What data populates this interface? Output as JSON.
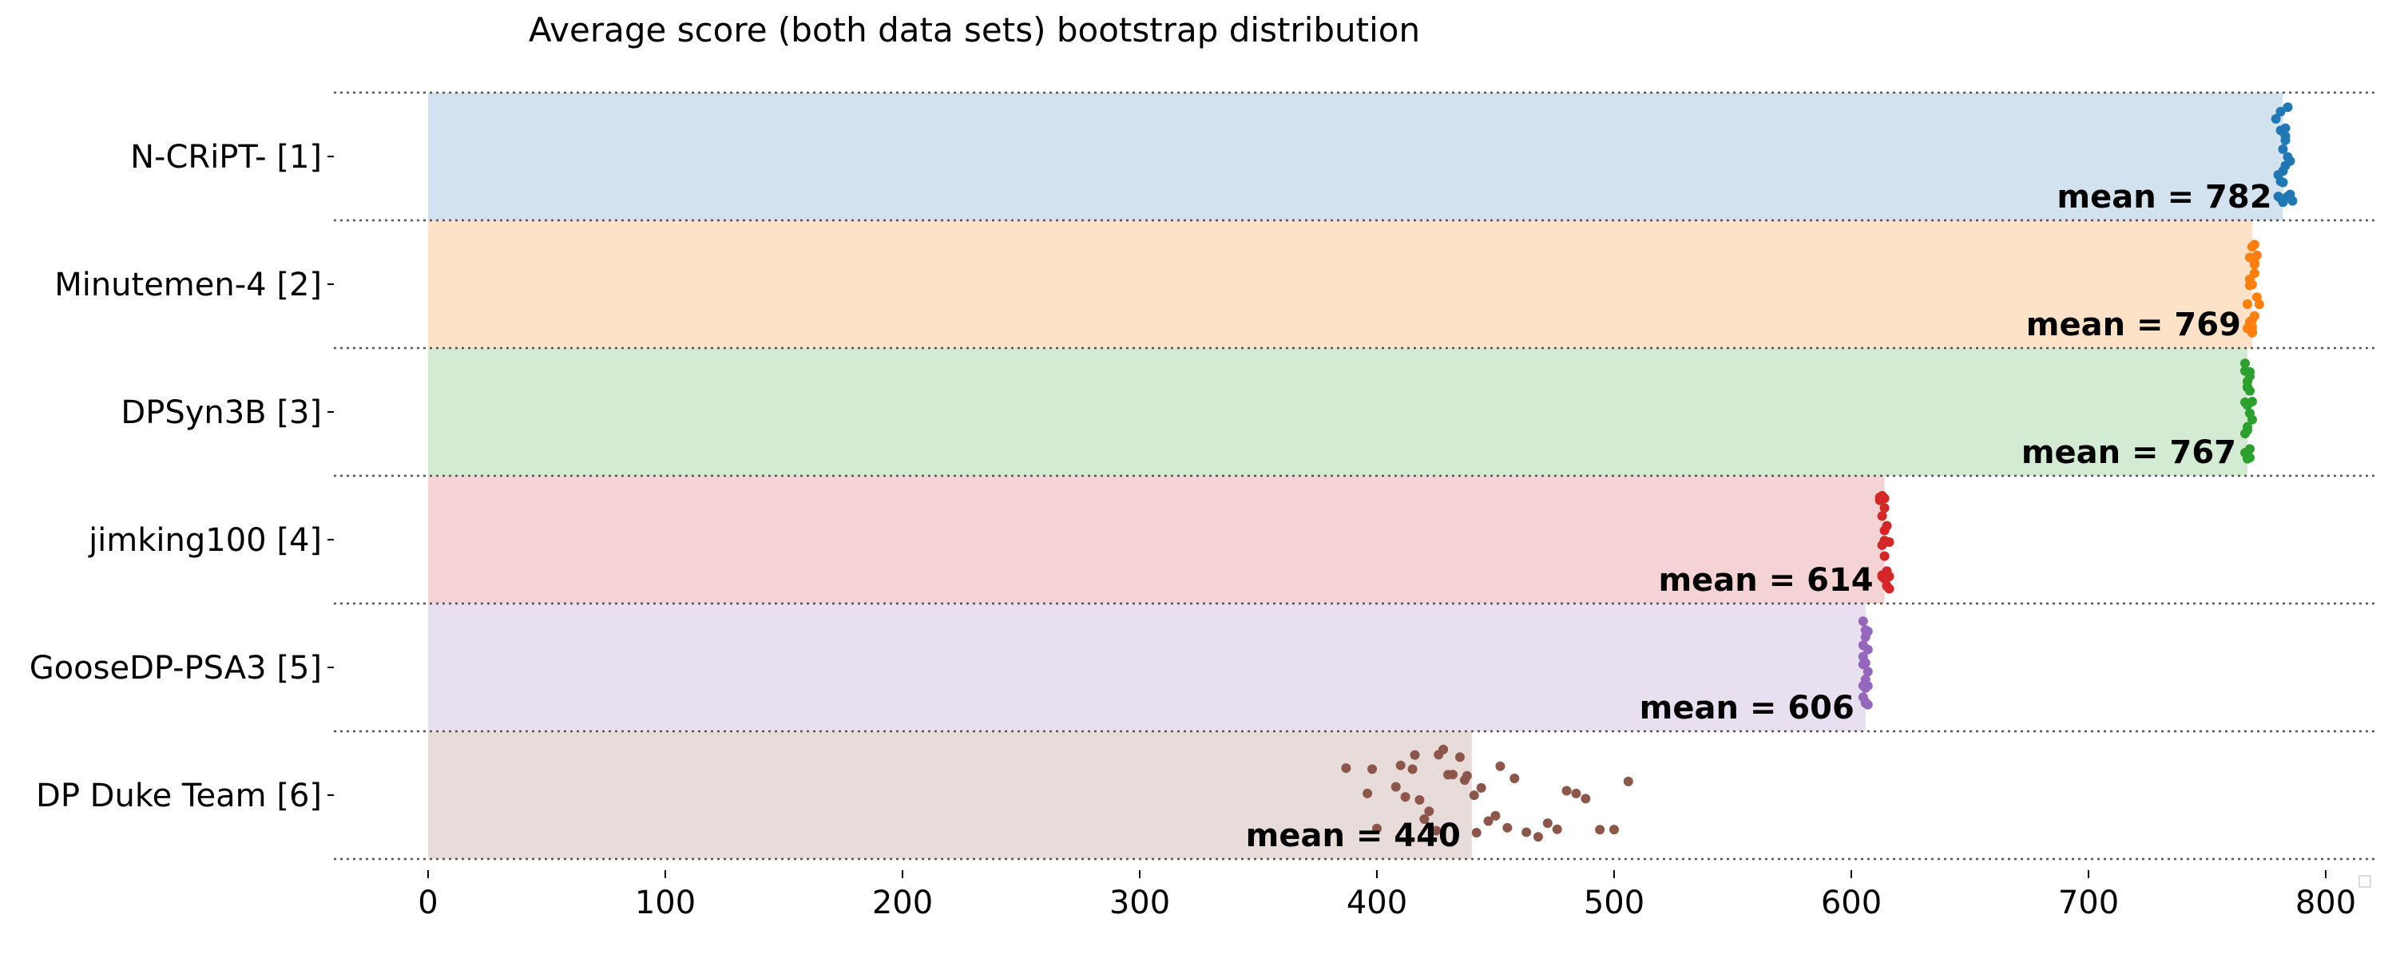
{
  "chart_data": {
    "type": "bar",
    "title": "Average score (both data sets) bootstrap distribution",
    "xlabel": "",
    "ylabel": "",
    "xlim": [
      -40,
      820
    ],
    "x_ticks": [
      0,
      100,
      200,
      300,
      400,
      500,
      600,
      700,
      800
    ],
    "grid": "dotted horizontal separators between rows",
    "categories": [
      "N-CRiPT- [1]",
      "Minutemen-4 [2]",
      "DPSyn3B [3]",
      "jimking100 [4]",
      "GooseDP-PSA3 [5]",
      "DP Duke Team [6]"
    ],
    "mean_label_prefix": "mean = ",
    "series": [
      {
        "category": "N-CRiPT- [1]",
        "mean": 782,
        "color": "#1f77b4",
        "fill": "#d2e2ee",
        "bootstrap": [
          781,
          784,
          782,
          780,
          785,
          783,
          781,
          782,
          786,
          779,
          783,
          782,
          781,
          784,
          780,
          785,
          782,
          783,
          781,
          784,
          782,
          783
        ]
      },
      {
        "category": "Minutemen-4 [2]",
        "mean": 769,
        "color": "#ff7f0e",
        "fill": "#fee2c8",
        "bootstrap": [
          768,
          770,
          769,
          771,
          767,
          769,
          770,
          768,
          769,
          772,
          768,
          770,
          769,
          767,
          771,
          769,
          770,
          768,
          769,
          770
        ]
      },
      {
        "category": "DPSyn3B [3]",
        "mean": 767,
        "color": "#2ca02c",
        "fill": "#d3ebd3",
        "bootstrap": [
          766,
          768,
          767,
          769,
          766,
          767,
          768,
          767,
          766,
          768,
          767,
          769,
          767,
          766,
          768,
          767,
          768,
          767,
          766,
          768
        ]
      },
      {
        "category": "jimking100 [4]",
        "mean": 614,
        "color": "#d62728",
        "fill": "#f5d3d4",
        "bootstrap": [
          613,
          615,
          614,
          616,
          612,
          614,
          615,
          613,
          614,
          616,
          613,
          615,
          614,
          612,
          615,
          614,
          616,
          613,
          614,
          615,
          614,
          613
        ]
      },
      {
        "category": "GooseDP-PSA3 [5]",
        "mean": 606,
        "color": "#9467bd",
        "fill": "#e8dff0",
        "bootstrap": [
          605,
          607,
          606,
          605,
          607,
          606,
          605,
          606,
          607,
          606,
          605,
          607,
          606,
          605,
          606,
          607,
          606,
          605
        ]
      },
      {
        "category": "DP Duke Team [6]",
        "mean": 440,
        "color": "#8c564b",
        "fill": "#e7dcda",
        "bootstrap": [
          387,
          396,
          400,
          408,
          410,
          415,
          418,
          422,
          425,
          428,
          432,
          435,
          438,
          441,
          444,
          447,
          450,
          452,
          455,
          458,
          463,
          468,
          472,
          476,
          480,
          484,
          488,
          494,
          500,
          506,
          412,
          430,
          420,
          442,
          398,
          426,
          437,
          416
        ]
      }
    ]
  }
}
